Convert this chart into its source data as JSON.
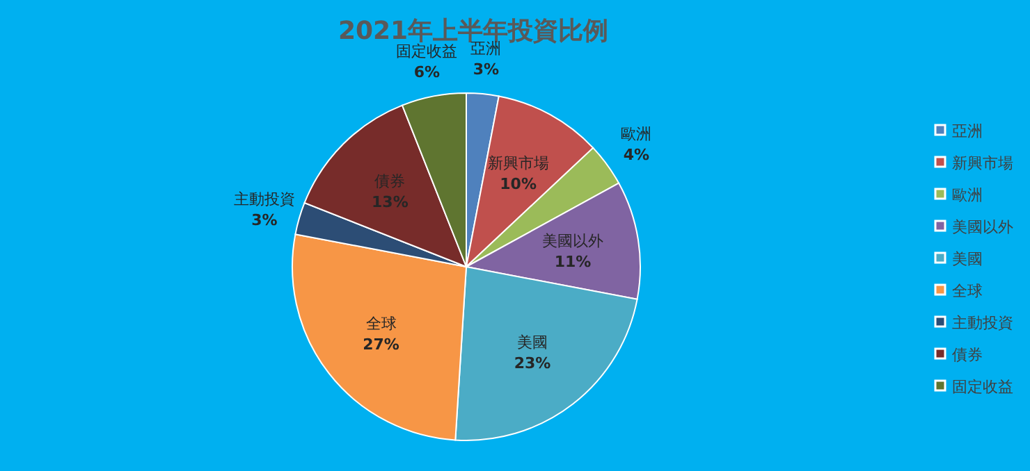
{
  "chart_data": {
    "type": "pie",
    "title": "2021年上半年投資比例",
    "categories": [
      "亞洲",
      "新興市場",
      "歐洲",
      "美國以外",
      "美國",
      "全球",
      "主動投資",
      "債券",
      "固定收益"
    ],
    "values": [
      3,
      10,
      4,
      11,
      23,
      27,
      3,
      13,
      6
    ],
    "value_labels": [
      "3%",
      "10%",
      "4%",
      "11%",
      "23%",
      "27%",
      "3%",
      "13%",
      "6%"
    ],
    "colors": [
      "#4f81bd",
      "#c0504d",
      "#9bbb59",
      "#8064a2",
      "#4bacc6",
      "#f79646",
      "#2c4d75",
      "#772c2a",
      "#5f7530"
    ],
    "legend": "right"
  }
}
